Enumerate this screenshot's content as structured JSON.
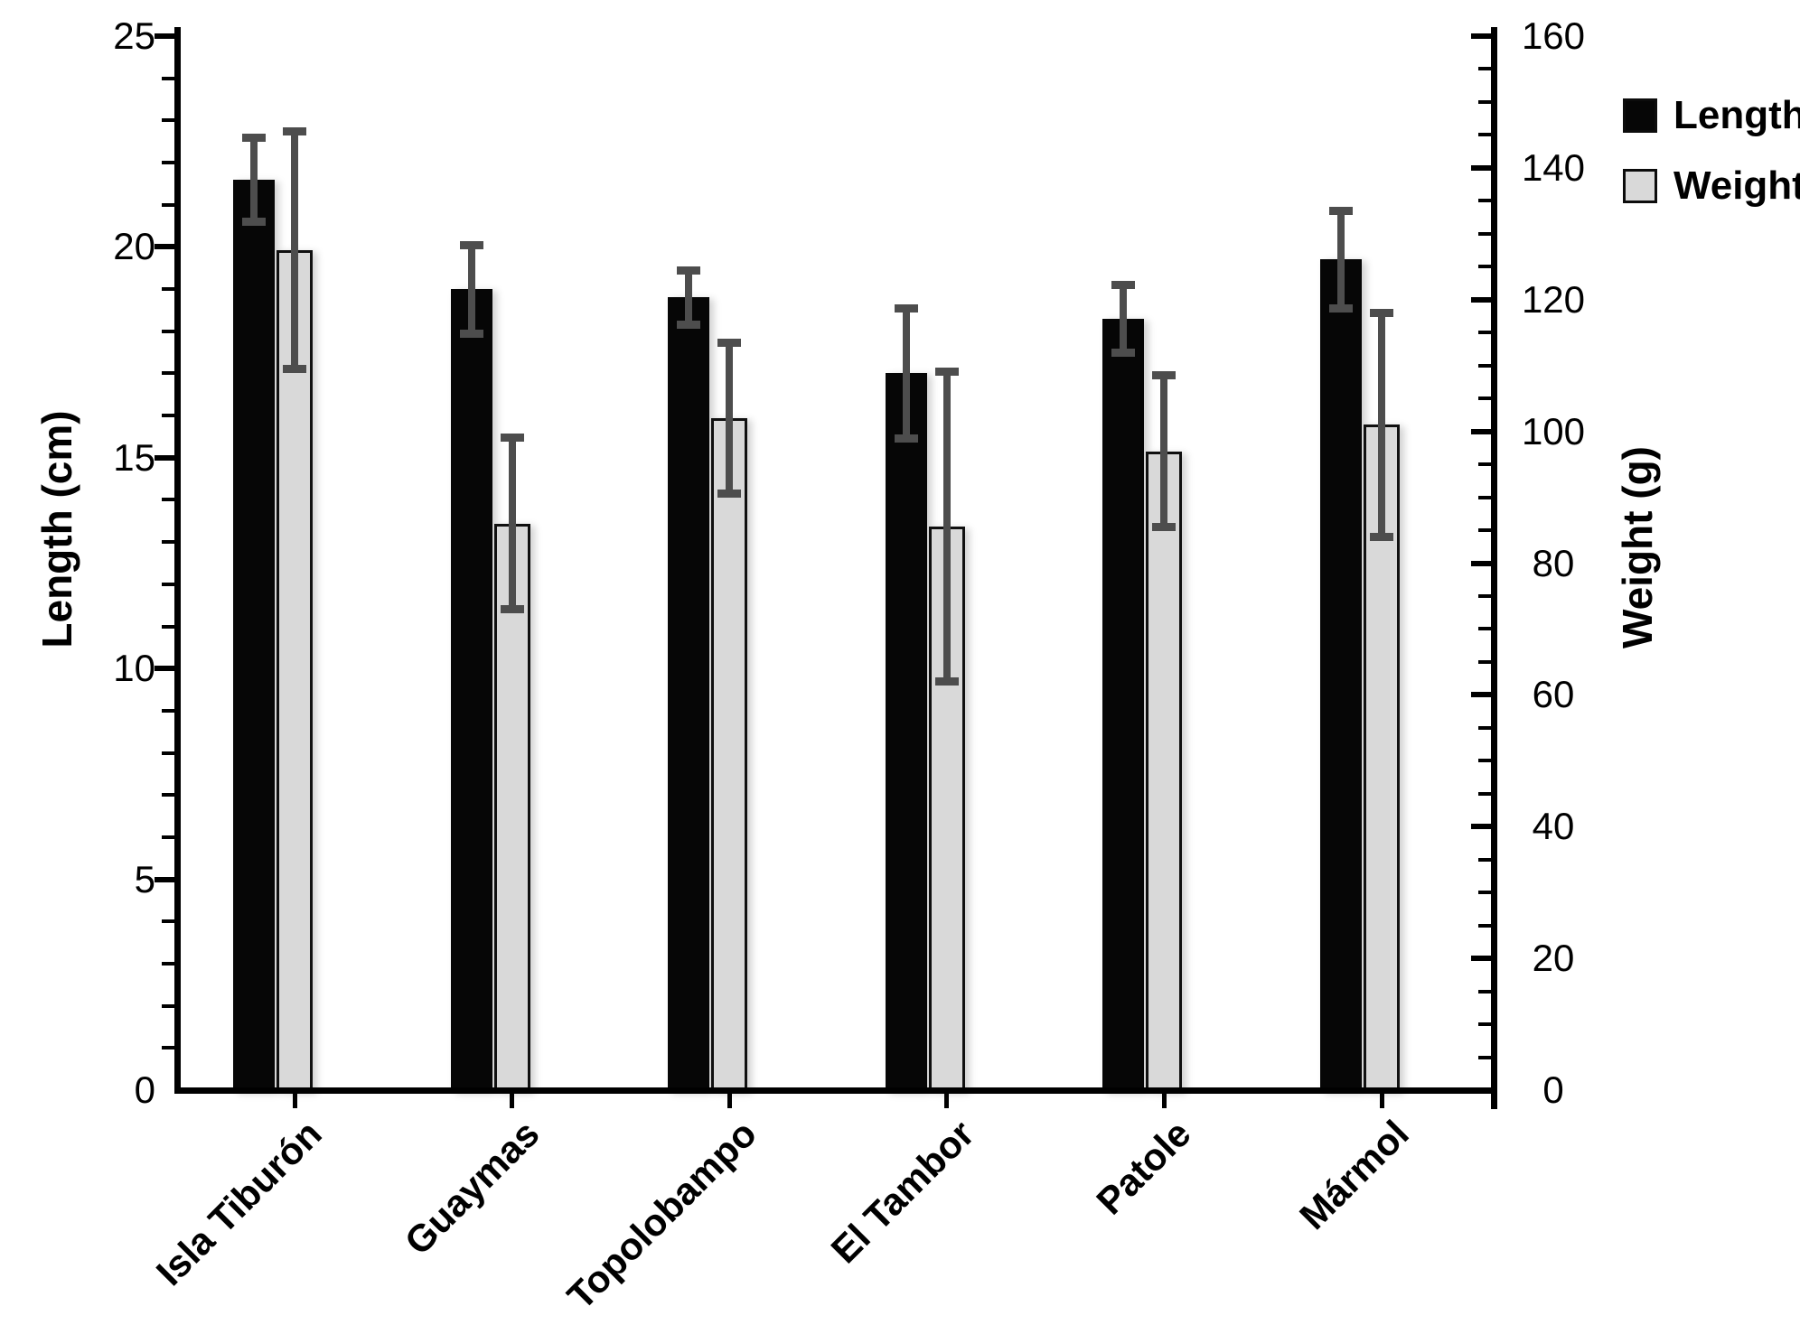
{
  "chart_data": {
    "type": "bar",
    "categories": [
      "Isla Tiburón",
      "Guaymas",
      "Topolobampo",
      "El Tambor",
      "Patole",
      "Mármol"
    ],
    "series": [
      {
        "name": "Length",
        "axis": "left",
        "unit": "cm",
        "color": "#060606",
        "values": [
          21.6,
          19.0,
          18.8,
          17.0,
          18.3,
          19.7
        ],
        "errors": [
          1.0,
          1.05,
          0.65,
          1.55,
          0.8,
          1.15
        ]
      },
      {
        "name": "Weight",
        "axis": "right",
        "unit": "g",
        "color": "#d9d9d9",
        "values": [
          127.5,
          86,
          102,
          85.5,
          97,
          101
        ],
        "errors": [
          18,
          13,
          11.5,
          23.5,
          11.5,
          17
        ]
      }
    ],
    "left_axis": {
      "label": "Length (cm)",
      "min": 0,
      "max": 25,
      "major_step": 5,
      "minor_step": 1
    },
    "right_axis": {
      "label": "Weight (g)",
      "min": 0,
      "max": 160,
      "major_step": 20,
      "minor_step": 5
    },
    "legend": [
      {
        "label": "Length",
        "color": "#060606"
      },
      {
        "label": "Weight",
        "color": "#d9d9d9"
      }
    ],
    "error_bar_color": "#4d4d4d",
    "grid": false,
    "legend_position": "top-right"
  }
}
